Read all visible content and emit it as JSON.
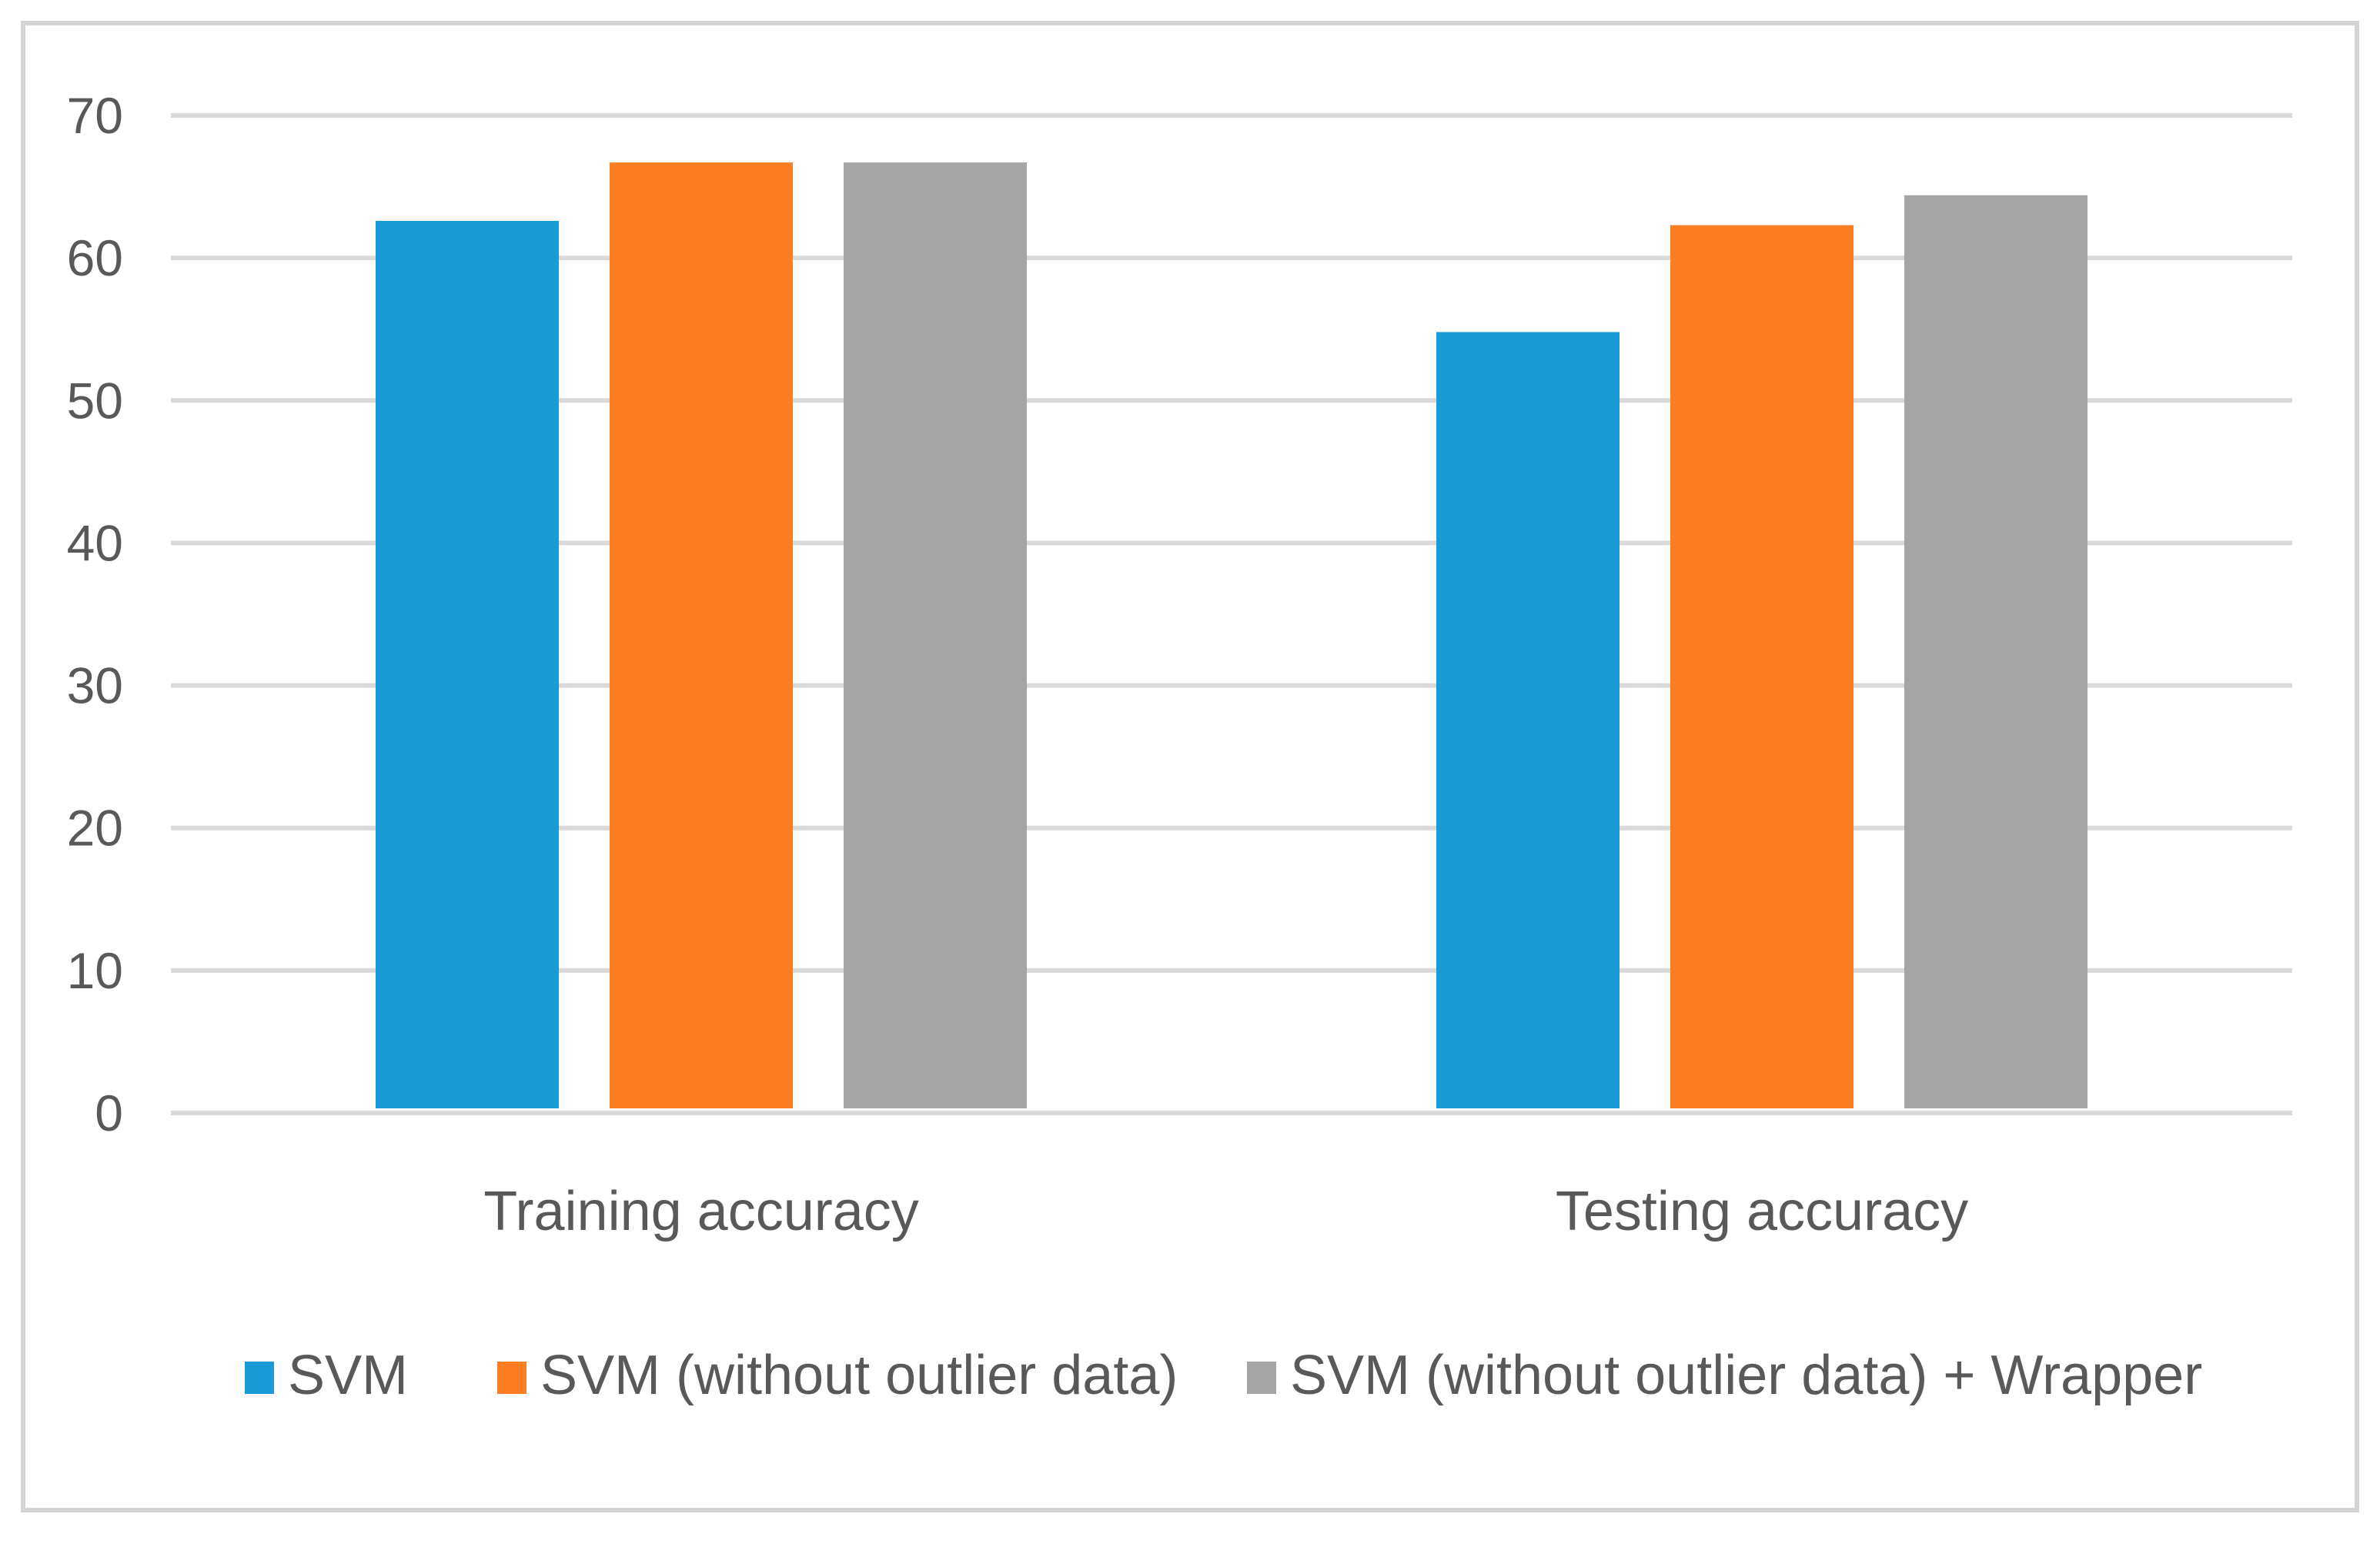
{
  "chart_data": {
    "type": "bar",
    "title": "",
    "xlabel": "",
    "ylabel": "",
    "categories": [
      "Training accuracy",
      "Testing accuracy"
    ],
    "series": [
      {
        "name": "SVM",
        "color": "#1a9bd7",
        "values": [
          62.6,
          54.8
        ]
      },
      {
        "name": "SVM (without outlier data)",
        "color": "#fd7e22",
        "values": [
          66.7,
          62.3
        ]
      },
      {
        "name": "SVM (without outlier data) + Wrapper",
        "color": "#a5a5a5",
        "values": [
          66.7,
          64.4
        ]
      }
    ],
    "ylim": [
      0,
      70
    ],
    "yticks": [
      0,
      10,
      20,
      30,
      40,
      50,
      60,
      70
    ],
    "grid": true,
    "legend_position": "bottom"
  }
}
